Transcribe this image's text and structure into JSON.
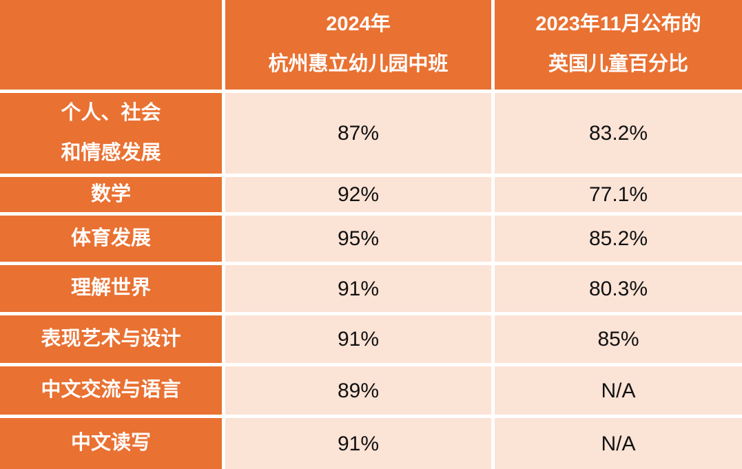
{
  "colors": {
    "accent_orange": "#E97132",
    "cell_peach": "#FBE3D6",
    "gridline_white": "#FFFFFF",
    "header_text": "#FFFFFF",
    "value_text": "#111111"
  },
  "table": {
    "header": {
      "col_huili_line1": "2024年",
      "col_huili_line2": "杭州惠立幼儿园中班",
      "col_uk_line1": "2023年11月公布的",
      "col_uk_line2": "英国儿童百分比"
    },
    "rows": [
      {
        "label1": "个人、社会",
        "label2": "和情感发展",
        "huili": "87%",
        "uk": "83.2%"
      },
      {
        "label1": "数学",
        "huili": "92%",
        "uk": "77.1%"
      },
      {
        "label1": "体育发展",
        "huili": "95%",
        "uk": "85.2%"
      },
      {
        "label1": "理解世界",
        "huili": "91%",
        "uk": "80.3%"
      },
      {
        "label1": "表现艺术与设计",
        "huili": "91%",
        "uk": "85%"
      },
      {
        "label1": "中文交流与语言",
        "huili": "89%",
        "uk": "N/A"
      },
      {
        "label1": "中文读写",
        "huili": "91%",
        "uk": "N/A"
      }
    ]
  },
  "chart_data": {
    "type": "table",
    "title": "",
    "columns": [
      "",
      "2024年 杭州惠立幼儿园中班",
      "2023年11月公布的 英国儿童百分比"
    ],
    "rows": [
      [
        "个人、社会和情感发展",
        "87%",
        "83.2%"
      ],
      [
        "数学",
        "92%",
        "77.1%"
      ],
      [
        "体育发展",
        "95%",
        "85.2%"
      ],
      [
        "理解世界",
        "91%",
        "80.3%"
      ],
      [
        "表现艺术与设计",
        "91%",
        "85%"
      ],
      [
        "中文交流与语言",
        "89%",
        "N/A"
      ],
      [
        "中文读写",
        "91%",
        "N/A"
      ]
    ]
  }
}
